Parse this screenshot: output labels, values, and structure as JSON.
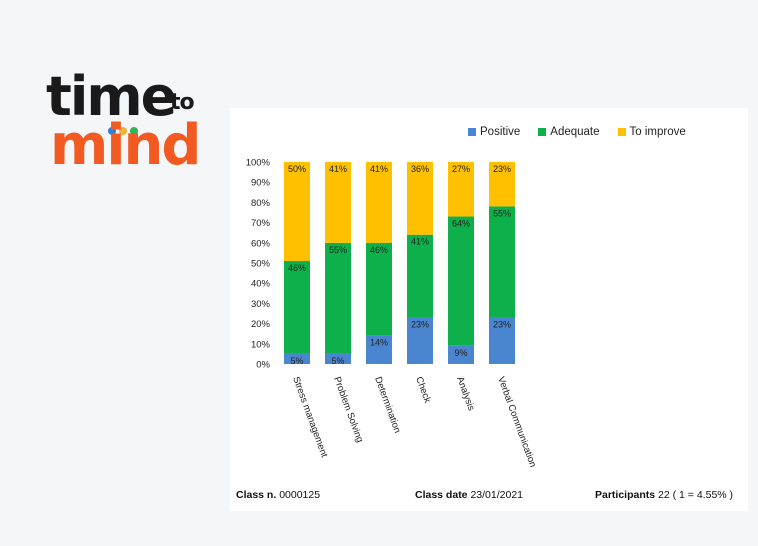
{
  "logo": {
    "word1": "time",
    "word2": "to",
    "word3": "mind",
    "dot_colors": [
      "#3a7bd5",
      "#f2b233",
      "#34b35a"
    ]
  },
  "legend": [
    {
      "name": "Positive",
      "color": "#4a86d0"
    },
    {
      "name": "Adequate",
      "color": "#0db04b"
    },
    {
      "name": "To improve",
      "color": "#ffc000"
    }
  ],
  "chart_data": {
    "type": "bar",
    "stacked": true,
    "categories": [
      "Stress management",
      "Problem Solving",
      "Determination",
      "Check",
      "Analysis",
      "Verbal Communication"
    ],
    "series": [
      {
        "name": "Positive",
        "values": [
          5,
          5,
          14,
          23,
          9,
          23
        ],
        "labels": [
          "5%",
          "5%",
          "14%",
          "23%",
          "9%",
          "23%"
        ]
      },
      {
        "name": "Adequate",
        "values": [
          46,
          55,
          46,
          41,
          64,
          55
        ],
        "labels": [
          "46%",
          "55%",
          "46%",
          "41%",
          "64%",
          "55%"
        ]
      },
      {
        "name": "To improve",
        "values": [
          50,
          41,
          41,
          36,
          27,
          23
        ],
        "labels": [
          "50%",
          "41%",
          "41%",
          "36%",
          "27%",
          "23%"
        ]
      }
    ],
    "yticks": [
      "0%",
      "10%",
      "20%",
      "30%",
      "40%",
      "50%",
      "60%",
      "70%",
      "80%",
      "90%",
      "100%"
    ],
    "ylim": [
      0,
      100
    ],
    "legend_position": "top"
  },
  "footer": {
    "class_label": "Class n.",
    "class_value": "0000125",
    "date_label": "Class date",
    "date_value": "23/01/2021",
    "participants_label": "Participants",
    "participants_value": "22 ( 1 = 4.55% )"
  }
}
